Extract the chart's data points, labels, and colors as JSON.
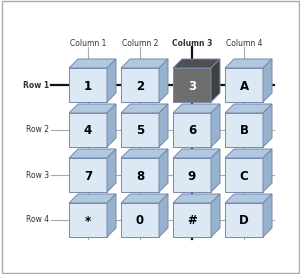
{
  "grid_labels": [
    [
      "1",
      "2",
      "3",
      "A"
    ],
    [
      "4",
      "5",
      "6",
      "B"
    ],
    [
      "7",
      "8",
      "9",
      "C"
    ],
    [
      "*",
      "0",
      "#",
      "D"
    ]
  ],
  "col_headers": [
    "Column 1",
    "Column 2",
    "Column 3",
    "Column 4"
  ],
  "row_headers": [
    "Row 1",
    "Row 2",
    "Row 3",
    "Row 4"
  ],
  "highlighted_row": 0,
  "highlighted_col": 2,
  "highlight_col_bold": 2,
  "highlight_row_bold": 0,
  "normal_face_color": "#dce9f5",
  "highlight_face_color": "#6e6e6e",
  "normal_top_color": "#b0c8e0",
  "normal_side_color": "#96b2cc",
  "highlight_top_color": "#505050",
  "highlight_side_color": "#404040",
  "normal_text_color": "#000000",
  "highlight_text_color": "#ffffff",
  "row_line_color_normal": "#aaaaaa",
  "row_line_color_highlight": "#111111",
  "col_line_color_normal": "#aaaaaa",
  "col_line_color_highlight": "#111111",
  "background_color": "#ffffff",
  "fig_width": 3.0,
  "fig_height": 2.74,
  "dpi": 100
}
